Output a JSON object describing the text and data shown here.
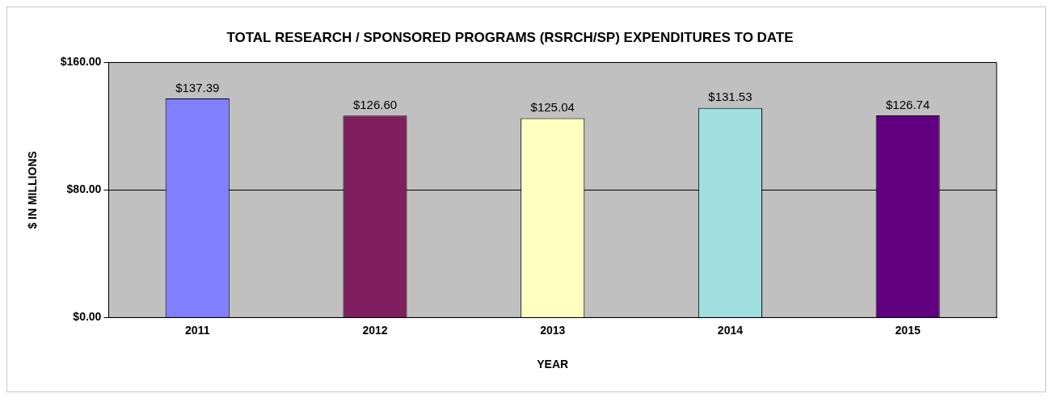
{
  "chart_data": {
    "type": "bar",
    "title": "TOTAL RESEARCH / SPONSORED PROGRAMS (RSRCH/SP) EXPENDITURES TO DATE",
    "xlabel": "YEAR",
    "ylabel": "$ IN MILLIONS",
    "categories": [
      "2011",
      "2012",
      "2013",
      "2014",
      "2015"
    ],
    "values": [
      137.39,
      126.6,
      125.04,
      131.53,
      126.74
    ],
    "value_labels": [
      "$137.39",
      "$126.60",
      "$125.04",
      "$131.53",
      "$126.74"
    ],
    "colors": [
      "#8080ff",
      "#7f1f5f",
      "#ffffc0",
      "#a0e0e0",
      "#600080"
    ],
    "ylim": [
      0,
      160
    ],
    "yticks": [
      {
        "value": 0,
        "label": "$0.00"
      },
      {
        "value": 80,
        "label": "$80.00"
      },
      {
        "value": 160,
        "label": "$160.00"
      }
    ],
    "grid": "y",
    "legend": false
  }
}
